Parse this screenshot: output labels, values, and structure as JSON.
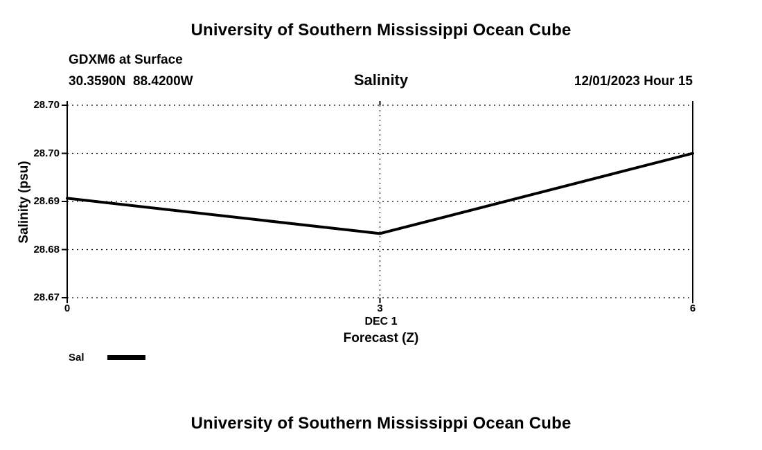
{
  "page": {
    "top_title": "University of Southern Mississippi Ocean Cube",
    "bottom_title": "University of Southern Mississippi Ocean Cube"
  },
  "header": {
    "station": "GDXM6 at Surface",
    "coords": "30.3590N  88.4200W",
    "variable": "Salinity",
    "datetime": "12/01/2023 Hour 15"
  },
  "chart_data": {
    "type": "line",
    "title": "Salinity",
    "x": [
      0,
      3,
      6
    ],
    "series": [
      {
        "name": "Sal",
        "values": [
          28.688,
          28.6825,
          28.695
        ]
      }
    ],
    "x_ticks": [
      "0",
      "3",
      "6"
    ],
    "y_tick_labels": [
      "28.70",
      "28.70",
      "28.69",
      "28.68",
      "28.67"
    ],
    "xlim": [
      0,
      6
    ],
    "ylim": [
      28.6725,
      28.7025
    ],
    "xlabel_line1": "DEC 1",
    "xlabel_line2": "Forecast (Z)",
    "ylabel": "Salinity (psu)",
    "grid": "dashed",
    "legend_position": "bottom-left",
    "line_color": "#000000",
    "legend": [
      {
        "label": "Sal",
        "color": "#000000"
      }
    ]
  }
}
